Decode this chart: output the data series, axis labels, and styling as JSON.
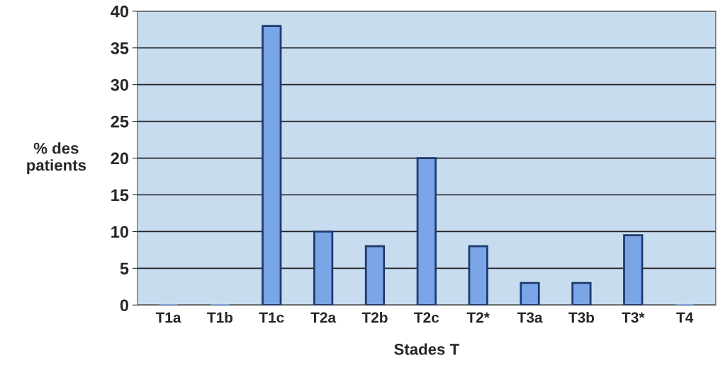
{
  "chart_data": {
    "type": "bar",
    "xlabel": "Stades T",
    "ylabel": "% des\npatients",
    "categories": [
      "T1a",
      "T1b",
      "T1c",
      "T2a",
      "T2b",
      "T2c",
      "T2*",
      "T3a",
      "T3b",
      "T3*",
      "T4"
    ],
    "values": [
      0,
      0,
      38,
      10,
      8,
      20,
      8,
      3,
      3,
      9.5,
      0
    ],
    "color": "#7aa5e6",
    "ylim": [
      0,
      40
    ],
    "yticks": [
      0,
      5,
      10,
      15,
      20,
      25,
      30,
      35,
      40
    ],
    "grid": "y"
  }
}
